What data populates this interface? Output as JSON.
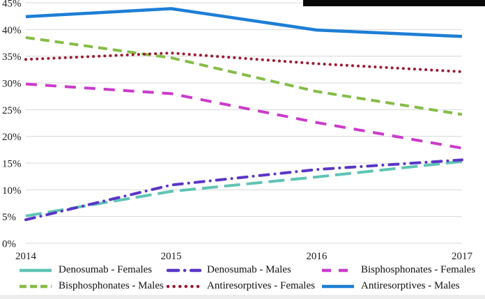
{
  "page": {
    "background": "#ffffff",
    "top_right_bar_color": "#080808",
    "bottom_strip_color": "#ededed",
    "grid_color": "#d8d8d8",
    "text_color": "#1c1c1c"
  },
  "chart_data": {
    "type": "line",
    "x": [
      "2014",
      "2015",
      "2016",
      "2017"
    ],
    "series": [
      {
        "name": "Denosumab - Females",
        "color": "#5fc4b4",
        "style": "long-dash",
        "values": [
          5.1,
          9.7,
          12.4,
          15.3
        ]
      },
      {
        "name": "Denosumab - Males",
        "color": "#5a36c6",
        "style": "dash-dot",
        "values": [
          4.4,
          10.9,
          13.8,
          15.6
        ]
      },
      {
        "name": "Bisphosphonates - Females",
        "color": "#ca3bca",
        "style": "dash-wide",
        "values": [
          29.8,
          28.0,
          22.6,
          17.8
        ]
      },
      {
        "name": "Bisphosphonates - Males",
        "color": "#86bc47",
        "style": "dash",
        "values": [
          38.5,
          34.7,
          28.4,
          24.1
        ]
      },
      {
        "name": "Antiresorptives - Females",
        "color": "#9b1b33",
        "style": "dot",
        "values": [
          34.4,
          35.6,
          33.6,
          32.1
        ]
      },
      {
        "name": "Antiresorptives - Males",
        "color": "#1d7ed6",
        "style": "solid",
        "values": [
          42.4,
          43.9,
          39.9,
          38.7
        ]
      }
    ],
    "title": "",
    "xlabel": "",
    "ylabel": "",
    "ylim": [
      0,
      45
    ],
    "y_ticks": [
      "0%",
      "5%",
      "10%",
      "15%",
      "20%",
      "25%",
      "30%",
      "35%",
      "40%",
      "45%"
    ],
    "grid": true,
    "legend_position": "bottom",
    "legend_rows": 2,
    "legend_columns": 3,
    "legend_order": [
      "Denosumab - Females",
      "Denosumab - Males",
      "Bisphosphonates - Females",
      "Bisphosphonates - Males",
      "Antiresorptives - Females",
      "Antiresorptives - Males"
    ]
  }
}
